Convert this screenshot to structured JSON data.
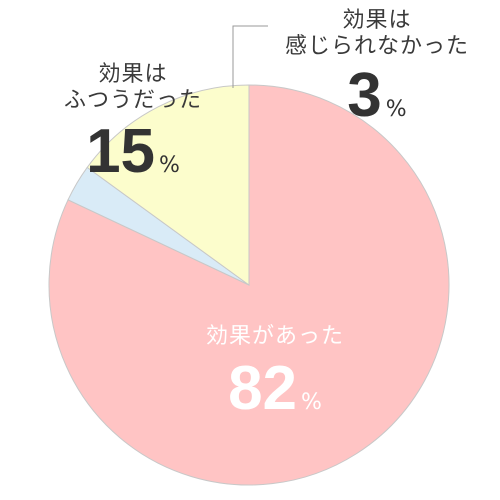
{
  "chart_data": {
    "type": "pie",
    "slices": [
      {
        "label": "効果があった",
        "value": 82,
        "unit": "%",
        "color": "#ffc4c4"
      },
      {
        "label": "効果は感じられなかった",
        "label_lines": [
          "効果は",
          "感じられなかった"
        ],
        "value": 3,
        "unit": "%",
        "color": "#d9ebf7"
      },
      {
        "label": "効果はふつうだった",
        "label_lines": [
          "効果は",
          "ふつうだった"
        ],
        "value": 15,
        "unit": "%",
        "color": "#fcfdcc"
      }
    ],
    "start_angle_deg": 0,
    "direction": "clockwise",
    "colors": {
      "slice_border": "#c8c8c8",
      "leader_line": "#999999"
    }
  }
}
